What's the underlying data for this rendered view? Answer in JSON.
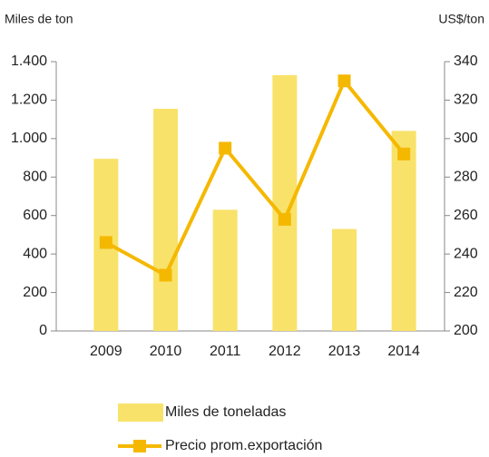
{
  "chart_data": {
    "type": "bar_line",
    "ylabel": "Miles de ton",
    "y2label": "US$/ton",
    "categories": [
      "2009",
      "2010",
      "2011",
      "2012",
      "2013",
      "2014"
    ],
    "series": [
      {
        "name": "Miles de toneladas",
        "type": "bar",
        "color": "#f8e26a",
        "values": [
          895,
          1155,
          630,
          1330,
          530,
          1040
        ]
      },
      {
        "name": "Precio prom.exportación",
        "type": "line",
        "axis": "y2",
        "color": "#f5b800",
        "values": [
          246,
          229,
          295,
          258,
          330,
          292
        ]
      }
    ],
    "ylim": [
      0,
      1400
    ],
    "yticks": [
      0,
      200,
      400,
      600,
      800,
      {
        "value": 1000,
        "label": "1.000"
      },
      {
        "value": 1200,
        "label": "1.200"
      },
      {
        "value": 1400,
        "label": "1.400"
      }
    ],
    "y2lim": [
      200,
      340
    ],
    "y2ticks": [
      200,
      220,
      240,
      260,
      280,
      300,
      320,
      340
    ],
    "legend": "bottom"
  }
}
